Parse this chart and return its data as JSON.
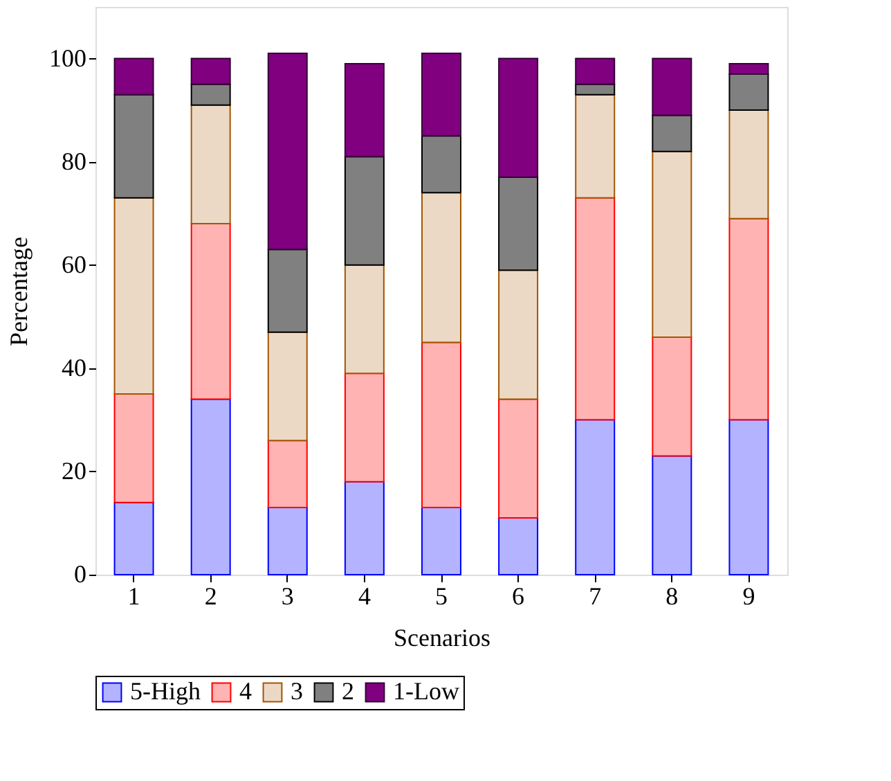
{
  "chart_data": {
    "type": "bar",
    "stacked": true,
    "xlabel": "Scenarios",
    "ylabel": "Percentage",
    "categories": [
      "1",
      "2",
      "3",
      "4",
      "5",
      "6",
      "7",
      "8",
      "9"
    ],
    "series": [
      {
        "name": "5-High",
        "color": "#b3b3ff",
        "values": [
          14,
          34,
          13,
          18,
          13,
          11,
          30,
          23,
          30
        ]
      },
      {
        "name": "4",
        "color": "#ffb3b3",
        "values": [
          21,
          34,
          13,
          21,
          32,
          23,
          43,
          23,
          39
        ]
      },
      {
        "name": "3",
        "color": "#ebd9c6",
        "values": [
          38,
          23,
          21,
          21,
          29,
          25,
          20,
          36,
          21
        ]
      },
      {
        "name": "2",
        "color": "#808080",
        "values": [
          20,
          4,
          16,
          21,
          11,
          18,
          2,
          7,
          7
        ]
      },
      {
        "name": "1-Low",
        "color": "#800080",
        "values": [
          7,
          5,
          38,
          18,
          16,
          23,
          5,
          11,
          2
        ]
      }
    ],
    "ylim": [
      0,
      110
    ],
    "yticks": [
      0,
      20,
      40,
      60,
      80,
      100
    ],
    "grid": false,
    "legend": "bottom"
  }
}
